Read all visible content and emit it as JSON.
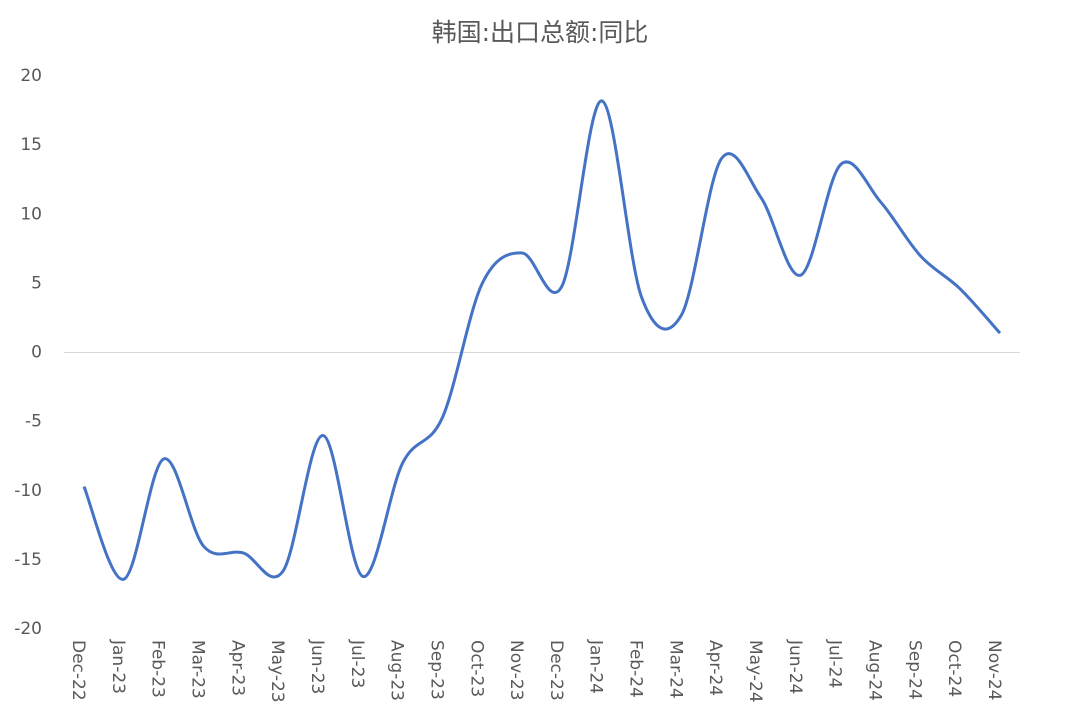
{
  "chart_data": {
    "type": "line",
    "title": "韩国:出口总额:同比",
    "categories": [
      "Dec-22",
      "Jan-23",
      "Feb-23",
      "Mar-23",
      "Apr-23",
      "May-23",
      "Jun-23",
      "Jul-23",
      "Aug-23",
      "Sep-23",
      "Oct-23",
      "Nov-23",
      "Dec-23",
      "Jan-24",
      "Feb-24",
      "Mar-24",
      "Apr-24",
      "May-24",
      "Jun-24",
      "Jul-24",
      "Aug-24",
      "Sep-24",
      "Oct-24",
      "Nov-24"
    ],
    "values": [
      -9.7,
      -16.4,
      -7.7,
      -14.0,
      -14.5,
      -15.8,
      -6.0,
      -16.2,
      -8.0,
      -4.7,
      5.0,
      7.2,
      4.8,
      18.2,
      4.0,
      2.7,
      14.0,
      11.2,
      5.6,
      13.6,
      10.9,
      7.0,
      4.6,
      1.4
    ],
    "color": "#4472c4",
    "smooth": true,
    "ylim": [
      -20,
      20
    ],
    "yticks": [
      -20,
      -15,
      -10,
      -5,
      0,
      5,
      10,
      15,
      20
    ],
    "zero_line": true
  }
}
